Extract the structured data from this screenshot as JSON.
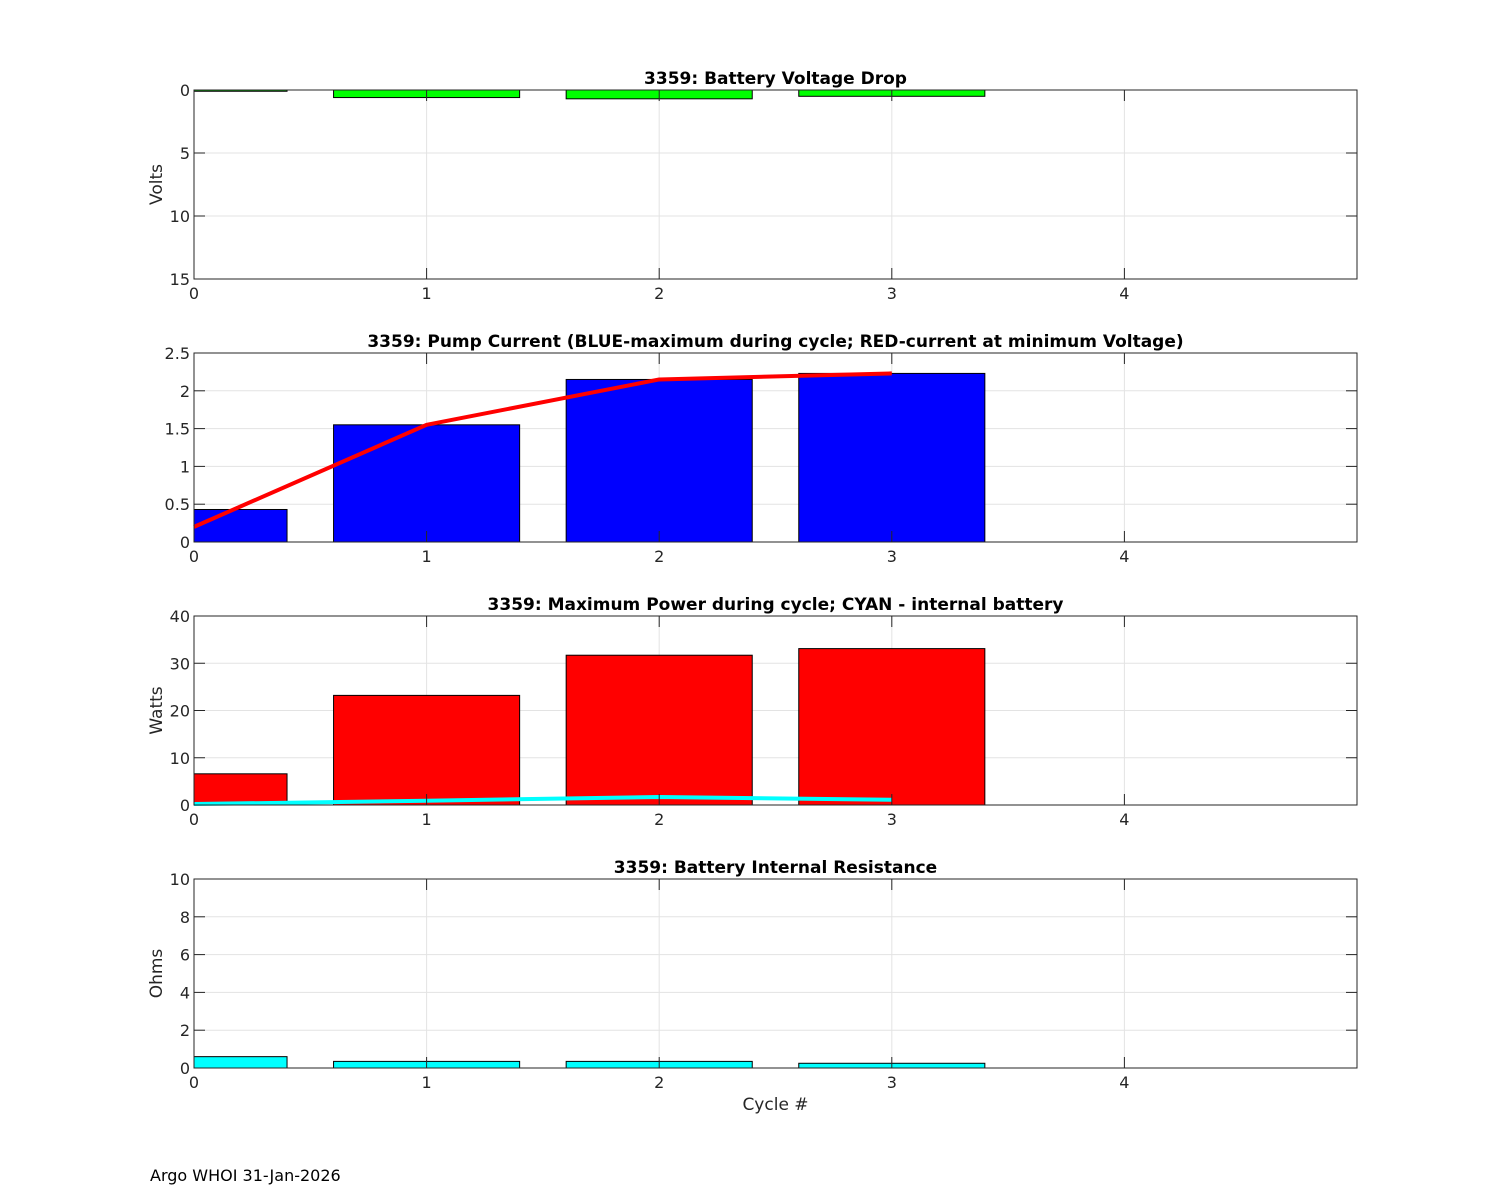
{
  "footer": "Argo WHOI 31-Jan-2026",
  "chart_data": [
    {
      "type": "bar",
      "title": "3359: Battery Voltage Drop",
      "xlabel": "",
      "ylabel": "Volts",
      "xlim": [
        0,
        5
      ],
      "ylim": [
        0,
        15
      ],
      "y_reversed": true,
      "xticks": [
        "0",
        "1",
        "2",
        "3",
        "4"
      ],
      "yticks": [
        "0",
        "5",
        "10",
        "15"
      ],
      "grid": true,
      "categories": [
        0,
        1,
        2,
        3
      ],
      "bar_color": "#00ff00",
      "values": [
        0.1,
        0.6,
        0.7,
        0.5
      ]
    },
    {
      "type": "bar",
      "title": "3359: Pump Current (BLUE-maximum during cycle; RED-current at minimum Voltage)",
      "xlabel": "",
      "ylabel": "",
      "xlim": [
        0,
        5
      ],
      "ylim": [
        0,
        2.5
      ],
      "xticks": [
        "0",
        "1",
        "2",
        "3",
        "4"
      ],
      "yticks": [
        "0",
        "0.5",
        "1",
        "1.5",
        "2",
        "2.5"
      ],
      "grid": true,
      "categories": [
        0,
        1,
        2,
        3
      ],
      "bar_color": "#0000ff",
      "values": [
        0.43,
        1.55,
        2.15,
        2.23
      ],
      "line": {
        "name": "current at minimum Voltage",
        "color": "#ff0000",
        "x": [
          0,
          1,
          2,
          3
        ],
        "y": [
          0.2,
          1.55,
          2.15,
          2.23
        ]
      }
    },
    {
      "type": "bar",
      "title": "3359: Maximum Power during cycle; CYAN - internal battery",
      "xlabel": "",
      "ylabel": "Watts",
      "xlim": [
        0,
        5
      ],
      "ylim": [
        0,
        40
      ],
      "xticks": [
        "0",
        "1",
        "2",
        "3",
        "4"
      ],
      "yticks": [
        "0",
        "10",
        "20",
        "30",
        "40"
      ],
      "grid": true,
      "categories": [
        0,
        1,
        2,
        3
      ],
      "bar_color": "#ff0000",
      "values": [
        6.6,
        23.2,
        31.7,
        33.1
      ],
      "line": {
        "name": "internal battery",
        "color": "#00ffff",
        "x": [
          0,
          1,
          2,
          3
        ],
        "y": [
          0.2,
          0.9,
          1.7,
          1.1
        ]
      }
    },
    {
      "type": "bar",
      "title": "3359: Battery Internal Resistance",
      "xlabel": "Cycle #",
      "ylabel": "Ohms",
      "xlim": [
        0,
        5
      ],
      "ylim": [
        0,
        10
      ],
      "xticks": [
        "0",
        "1",
        "2",
        "3",
        "4"
      ],
      "yticks": [
        "0",
        "2",
        "4",
        "6",
        "8",
        "10"
      ],
      "grid": true,
      "categories": [
        0,
        1,
        2,
        3
      ],
      "bar_color": "#00ffff",
      "values": [
        0.6,
        0.35,
        0.35,
        0.25
      ]
    }
  ]
}
